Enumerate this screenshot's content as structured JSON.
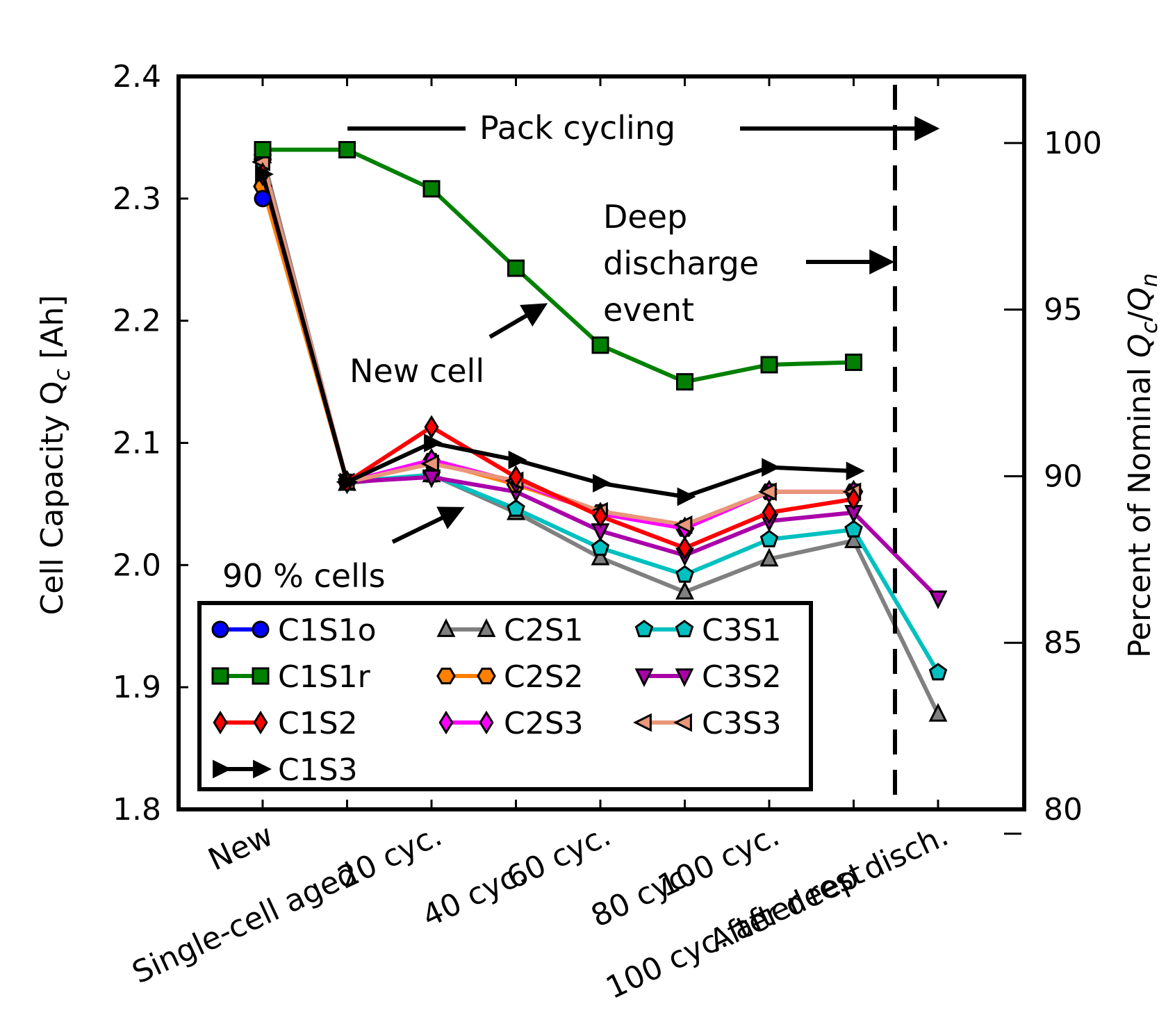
{
  "chart_data": {
    "type": "line",
    "title": "",
    "categories": [
      "New",
      "Single-cell aged",
      "20 cyc.",
      "40 cyc.",
      "60 cyc.",
      "80 cyc.",
      "100 cyc.",
      "100 cyc. after rest",
      "After deep disch."
    ],
    "ylabel_left": "Cell Capacity Q",
    "ylabel_left_subscript": "c",
    "ylabel_left_unit": " [Ah]",
    "ylabel_right_prefix": "Percent of Nominal ",
    "ylabel_right_math": "Q",
    "ylabel_right_sub1": "c",
    "ylabel_right_sep": "/",
    "ylabel_right_sub2": "n",
    "ylim": [
      1.8,
      2.4
    ],
    "yticks": [
      "1.8",
      "1.9",
      "2.0",
      "2.1",
      "2.2",
      "2.3",
      "2.4"
    ],
    "y2lim": [
      80,
      102
    ],
    "y2ticks": [
      "80",
      "85",
      "90",
      "95",
      "100"
    ],
    "series": [
      {
        "name": "C1S1o",
        "color": "#0000ff",
        "marker": "circle",
        "values": [
          2.3,
          null,
          null,
          null,
          null,
          null,
          null,
          null,
          null
        ]
      },
      {
        "name": "C1S1r",
        "color": "#008000",
        "marker": "square",
        "values": [
          2.34,
          2.34,
          2.308,
          2.243,
          2.18,
          2.15,
          2.164,
          2.166,
          null
        ]
      },
      {
        "name": "C1S2",
        "color": "#ff0000",
        "marker": "diamond",
        "values": [
          2.32,
          2.068,
          2.113,
          2.072,
          2.04,
          2.014,
          2.043,
          2.054,
          null
        ]
      },
      {
        "name": "C1S3",
        "color": "#000000",
        "marker": "triangle-right",
        "values": [
          2.32,
          2.068,
          2.1,
          2.086,
          2.067,
          2.056,
          2.08,
          2.077,
          null
        ]
      },
      {
        "name": "C2S1",
        "color": "#808080",
        "marker": "triangle-up",
        "values": [
          2.335,
          2.067,
          2.074,
          2.043,
          2.006,
          1.978,
          2.005,
          2.02,
          1.878
        ]
      },
      {
        "name": "C2S2",
        "color": "#ff8000",
        "marker": "hexagon",
        "values": [
          2.31,
          2.068,
          2.085,
          2.066,
          2.043,
          2.03,
          2.06,
          2.06,
          null
        ]
      },
      {
        "name": "C2S3",
        "color": "#ff00ff",
        "marker": "diamond",
        "values": [
          2.32,
          2.068,
          2.086,
          2.068,
          2.042,
          2.03,
          2.06,
          2.06,
          null
        ]
      },
      {
        "name": "C3S1",
        "color": "#00c0c0",
        "marker": "pentagon",
        "values": [
          2.33,
          2.068,
          2.074,
          2.046,
          2.014,
          1.992,
          2.021,
          2.029,
          1.912
        ]
      },
      {
        "name": "C3S2",
        "color": "#aa00aa",
        "marker": "triangle-down",
        "values": [
          2.33,
          2.068,
          2.072,
          2.06,
          2.028,
          2.008,
          2.036,
          2.043,
          1.973
        ]
      },
      {
        "name": "C3S3",
        "color": "#e9967a",
        "marker": "triangle-left",
        "values": [
          2.33,
          2.068,
          2.083,
          2.069,
          2.044,
          2.033,
          2.06,
          2.06,
          null
        ]
      }
    ],
    "legend_position": "lower-left",
    "annotations": {
      "pack_cycling": "Pack cycling",
      "deep_line1": "Deep",
      "deep_line2": "discharge",
      "deep_line3": "event",
      "new_cell": "New cell",
      "ninety_cells": "90 % cells"
    }
  }
}
